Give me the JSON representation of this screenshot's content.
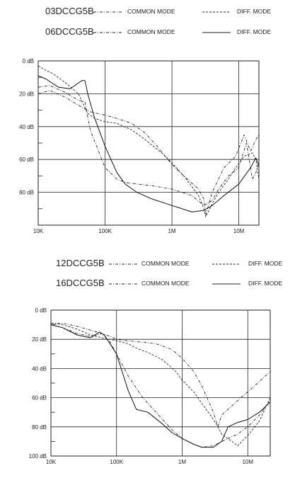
{
  "chart_data": [
    {
      "type": "line",
      "legend": [
        {
          "model": "03DCCG5B",
          "entries": [
            {
              "label": "COMMON MODE",
              "style": "dashdot"
            },
            {
              "label": "DIFF. MODE",
              "style": "dashed"
            }
          ]
        },
        {
          "model": "06DCCG5B",
          "entries": [
            {
              "label": "COMMON MODE",
              "style": "dashdot"
            },
            {
              "label": "DIFF. MODE",
              "style": "solid"
            }
          ]
        }
      ],
      "x_scale": "log",
      "x_range": [
        10000,
        20000000
      ],
      "x_ticks": [
        {
          "value": 10000,
          "label": "10K"
        },
        {
          "value": 100000,
          "label": "100K"
        },
        {
          "value": 1000000,
          "label": "1M"
        },
        {
          "value": 10000000,
          "label": "10M"
        }
      ],
      "y_range": [
        0,
        100
      ],
      "y_ticks": [
        {
          "value": 0,
          "label": "0 dB"
        },
        {
          "value": 20,
          "label": "20 dB"
        },
        {
          "value": 40,
          "label": "40 dB"
        },
        {
          "value": 60,
          "label": "60 dB"
        },
        {
          "value": 80,
          "label": "80 dB"
        }
      ],
      "grid": true,
      "series": [
        {
          "model": "03DCCG5B",
          "mode": "COMMON MODE",
          "style": "dashdot",
          "x": [
            10000,
            15000,
            25000,
            40000,
            60000,
            100000,
            150000,
            250000,
            400000,
            600000,
            1000000,
            1500000,
            2500000,
            3000000,
            3200000,
            4000000,
            6000000,
            9000000,
            12000000,
            15000000,
            18000000,
            20000000
          ],
          "y": [
            20,
            18,
            22,
            27,
            31,
            33,
            35,
            38,
            44,
            52,
            63,
            70,
            78,
            84,
            94,
            80,
            65,
            58,
            45,
            55,
            48,
            45
          ]
        },
        {
          "model": "03DCCG5B",
          "mode": "DIFF. MODE",
          "style": "dashed",
          "x": [
            10000,
            12000,
            17000,
            25000,
            40000,
            55000,
            70000,
            100000,
            150000,
            250000,
            400000,
            700000,
            1000000,
            1500000,
            2500000,
            3000000,
            3200000,
            4000000,
            5000000,
            7000000,
            9000000,
            12000000,
            16000000,
            18000000,
            20000000
          ],
          "y": [
            3,
            5,
            8,
            13,
            20,
            32,
            35,
            37,
            38,
            42,
            48,
            56,
            62,
            70,
            82,
            90,
            95,
            87,
            80,
            72,
            65,
            58,
            56,
            60,
            72
          ]
        },
        {
          "model": "06DCCG5B",
          "mode": "COMMON MODE",
          "style": "dashdot",
          "x": [
            10000,
            15000,
            25000,
            40000,
            50000,
            60000,
            80000,
            100000,
            150000,
            200000,
            300000,
            500000,
            1000000,
            2000000,
            3000000,
            4000000,
            5000000,
            7000000,
            10000000,
            13000000,
            16000000,
            18000000,
            20000000
          ],
          "y": [
            16,
            15,
            19,
            24,
            25,
            42,
            55,
            65,
            72,
            74,
            75,
            76,
            78,
            82,
            88,
            85,
            78,
            70,
            65,
            50,
            72,
            68,
            62
          ]
        },
        {
          "model": "06DCCG5B",
          "mode": "DIFF. MODE",
          "style": "solid",
          "x": [
            10000,
            13000,
            20000,
            30000,
            45000,
            50000,
            55000,
            70000,
            100000,
            150000,
            200000,
            300000,
            500000,
            1000000,
            2000000,
            3000000,
            4000000,
            6000000,
            10000000,
            15000000,
            18000000,
            20000000
          ],
          "y": [
            9,
            11,
            16,
            17,
            12,
            12,
            20,
            35,
            52,
            68,
            75,
            80,
            84,
            88,
            92,
            91,
            88,
            82,
            75,
            65,
            59,
            64
          ]
        }
      ]
    },
    {
      "type": "line",
      "legend": [
        {
          "model": "12DCCG5B",
          "entries": [
            {
              "label": "COMMON MODE",
              "style": "dashdot"
            },
            {
              "label": "DIFF. MODE",
              "style": "dashed"
            }
          ]
        },
        {
          "model": "16DCCG5B",
          "entries": [
            {
              "label": "COMMON MODE",
              "style": "dashdot"
            },
            {
              "label": "DIFF. MODE",
              "style": "solid"
            }
          ]
        }
      ],
      "x_scale": "log",
      "x_range": [
        10000,
        22000000
      ],
      "x_ticks": [
        {
          "value": 10000,
          "label": "10K"
        },
        {
          "value": 100000,
          "label": "100K"
        },
        {
          "value": 1000000,
          "label": "1M"
        },
        {
          "value": 10000000,
          "label": "10M"
        }
      ],
      "y_range": [
        0,
        100
      ],
      "y_ticks": [
        {
          "value": 0,
          "label": "0 dB"
        },
        {
          "value": 20,
          "label": "20 dB"
        },
        {
          "value": 40,
          "label": "40 dB"
        },
        {
          "value": 60,
          "label": "60 dB"
        },
        {
          "value": 80,
          "label": "80 dB"
        },
        {
          "value": 100,
          "label": "100 dB"
        }
      ],
      "grid": true,
      "series": [
        {
          "model": "12DCCG5B",
          "mode": "COMMON MODE",
          "style": "dashdot",
          "x": [
            10000,
            15000,
            25000,
            50000,
            80000,
            100000,
            150000,
            250000,
            400000,
            700000,
            1000000,
            1500000,
            2000000,
            3000000,
            3500000,
            4000000,
            5000000,
            7000000,
            10000000,
            15000000,
            22000000
          ],
          "y": [
            9,
            9,
            11,
            15,
            18,
            20,
            21,
            22,
            23,
            27,
            33,
            42,
            52,
            70,
            80,
            72,
            68,
            62,
            56,
            49,
            42
          ]
        },
        {
          "model": "12DCCG5B",
          "mode": "DIFF. MODE",
          "style": "dashed",
          "x": [
            10000,
            15000,
            25000,
            40000,
            60000,
            80000,
            100000,
            150000,
            200000,
            300000,
            500000,
            800000,
            1000000,
            1500000,
            2000000,
            3000000,
            3500000,
            4000000,
            5000000,
            7000000,
            10000000,
            15000000,
            22000000
          ],
          "y": [
            9,
            10,
            13,
            17,
            19,
            20,
            21,
            23,
            26,
            29,
            34,
            42,
            48,
            56,
            64,
            75,
            80,
            85,
            88,
            93,
            86,
            76,
            60
          ]
        },
        {
          "model": "16DCCG5B",
          "mode": "COMMON MODE",
          "style": "dashdot",
          "x": [
            10000,
            15000,
            25000,
            40000,
            60000,
            80000,
            100000,
            150000,
            250000,
            400000,
            700000,
            1000000,
            1500000,
            2000000,
            3000000,
            5000000,
            7000000,
            10000000,
            15000000,
            22000000
          ],
          "y": [
            10,
            12,
            16,
            18,
            16,
            22,
            30,
            45,
            60,
            70,
            82,
            88,
            92,
            94,
            93,
            88,
            85,
            80,
            72,
            62
          ]
        },
        {
          "model": "16DCCG5B",
          "mode": "DIFF. MODE",
          "style": "solid",
          "x": [
            10000,
            15000,
            25000,
            40000,
            55000,
            65000,
            100000,
            150000,
            200000,
            300000,
            500000,
            700000,
            1000000,
            1500000,
            2000000,
            3000000,
            4000000,
            5000000,
            7000000,
            10000000,
            15000000,
            22000000
          ],
          "y": [
            10,
            12,
            17,
            19,
            15,
            17,
            30,
            55,
            68,
            70,
            78,
            84,
            88,
            92,
            94,
            94,
            90,
            80,
            77,
            75,
            70,
            63
          ]
        }
      ]
    }
  ]
}
